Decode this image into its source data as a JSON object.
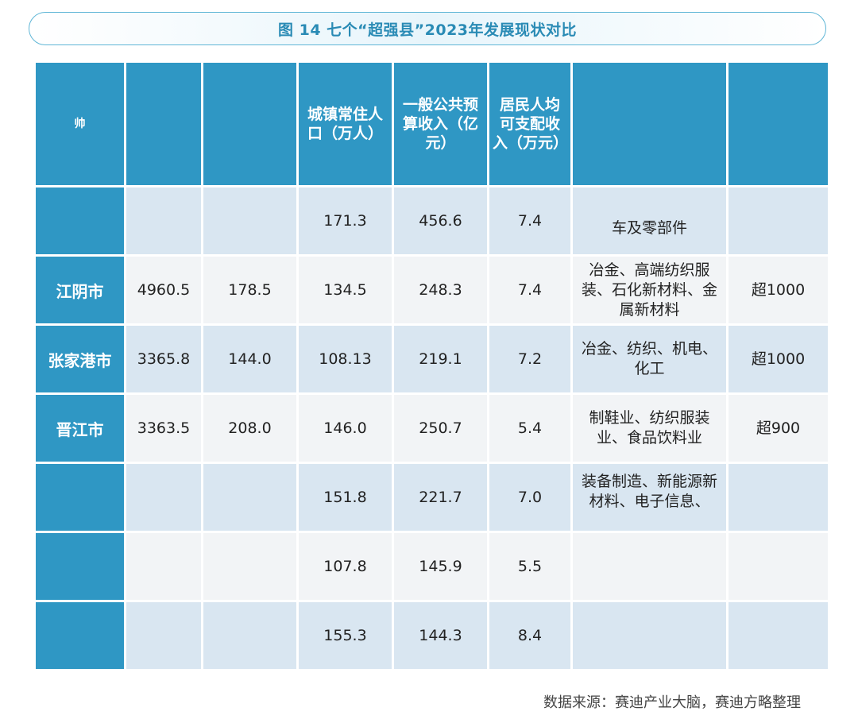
{
  "title": "图 14  七个“超强县”2023年发展现状对比",
  "header": {
    "c1": "帅",
    "c2": "",
    "c3": "",
    "c4": "城镇常住人口（万人）",
    "c5": "一般公共预算收入（亿元）",
    "c6": "居民人均可支配收入（万元）",
    "c7": "",
    "c8": ""
  },
  "rows": [
    {
      "name": "",
      "c2": "",
      "c3": "",
      "c4": "171.3",
      "c5": "456.6",
      "c6": "7.4",
      "c7": "车及零部件",
      "c8": ""
    },
    {
      "name": "江阴市",
      "c2": "4960.5",
      "c3": "178.5",
      "c4": "134.5",
      "c5": "248.3",
      "c6": "7.4",
      "c7": "冶金、高端纺织服装、石化新材料、金属新材料",
      "c8": "超1000"
    },
    {
      "name": "张家港市",
      "c2": "3365.8",
      "c3": "144.0",
      "c4": "108.13",
      "c5": "219.1",
      "c6": "7.2",
      "c7": "冶金、纺织、机电、化工",
      "c8": "超1000"
    },
    {
      "name": "晋江市",
      "c2": "3363.5",
      "c3": "208.0",
      "c4": "146.0",
      "c5": "250.7",
      "c6": "5.4",
      "c7": "制鞋业、纺织服装业、食品饮料业",
      "c8": "超900"
    },
    {
      "name": "",
      "c2": "",
      "c3": "",
      "c4": "151.8",
      "c5": "221.7",
      "c6": "7.0",
      "c7": "装备制造、新能源新材料、电子信息、",
      "c8": ""
    },
    {
      "name": "",
      "c2": "",
      "c3": "",
      "c4": "107.8",
      "c5": "145.9",
      "c6": "5.5",
      "c7": "",
      "c8": ""
    },
    {
      "name": "",
      "c2": "",
      "c3": "",
      "c4": "155.3",
      "c5": "144.3",
      "c6": "8.4",
      "c7": "",
      "c8": ""
    }
  ],
  "source": "数据来源：赛迪产业大脑，赛迪方略整理"
}
